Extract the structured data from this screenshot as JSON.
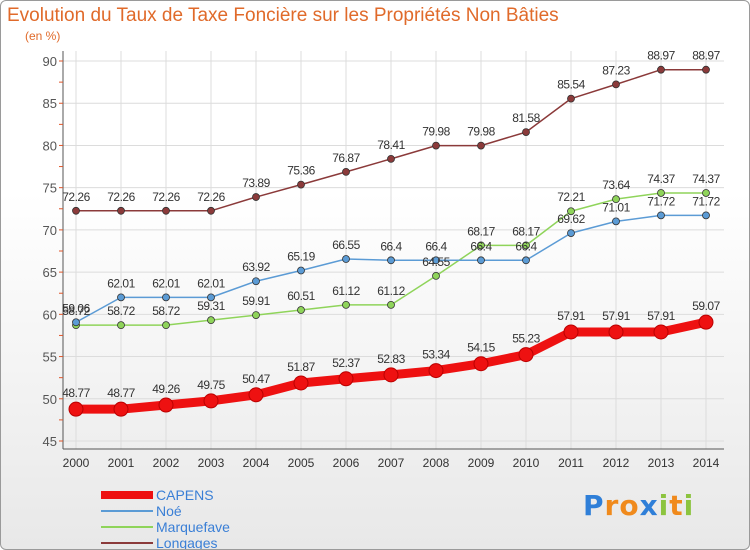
{
  "title": "Evolution du Taux de Taxe Foncière sur les Propriétés Non Bâties",
  "unit_label": "(en %)",
  "logo": {
    "letters": [
      "P",
      "r",
      "o",
      "x",
      "i",
      "t",
      "i"
    ],
    "colors": [
      "#2f7fd8",
      "#f08a1c",
      "#f08a1c",
      "#2f7fd8",
      "#8cc43f",
      "#f08a1c",
      "#8cc43f"
    ]
  },
  "chart_data": {
    "type": "line",
    "title": "Evolution du Taux de Taxe Foncière sur les Propriétés Non Bâties",
    "ylabel": "(en %)",
    "xlabel": "",
    "x": [
      "2000",
      "2001",
      "2002",
      "2003",
      "2004",
      "2005",
      "2006",
      "2007",
      "2008",
      "2009",
      "2010",
      "2011",
      "2012",
      "2013",
      "2014"
    ],
    "ylim": [
      45,
      90
    ],
    "yticks": [
      "45",
      "50",
      "55",
      "60",
      "65",
      "70",
      "75",
      "80",
      "85",
      "90"
    ],
    "grid": true,
    "legend_position": "bottom-left",
    "series": [
      {
        "name": "CAPENS",
        "color": "#ee1111",
        "values": [
          48.77,
          48.77,
          49.26,
          49.75,
          50.47,
          51.87,
          52.37,
          52.83,
          53.34,
          54.15,
          55.23,
          57.91,
          57.91,
          57.91,
          59.07
        ],
        "labels": [
          "48.77",
          "48.77",
          "49.26",
          "49.75",
          "50.47",
          "51.87",
          "52.37",
          "52.83",
          "53.34",
          "54.15",
          "55.23",
          "57.91",
          "57.91",
          "57.91",
          "59.07"
        ]
      },
      {
        "name": "Noé",
        "color": "#5b9bd5",
        "values": [
          59.06,
          62.01,
          62.01,
          62.01,
          63.92,
          65.19,
          66.55,
          66.4,
          66.4,
          66.4,
          66.4,
          69.62,
          71.01,
          71.72,
          71.72
        ],
        "labels": [
          "59.06",
          "62.01",
          "62.01",
          "62.01",
          "63.92",
          "65.19",
          "66.55",
          "66.4",
          "66.4",
          "66.4",
          "66.4",
          "69.62",
          "71.01",
          "71.72",
          "71.72"
        ]
      },
      {
        "name": "Marquefave",
        "color": "#8fd45a",
        "values": [
          58.72,
          58.72,
          58.72,
          59.31,
          59.91,
          60.51,
          61.12,
          61.12,
          64.55,
          68.17,
          68.17,
          72.21,
          73.64,
          74.37,
          74.37
        ],
        "labels": [
          "58.72",
          "58.72",
          "58.72",
          "59.31",
          "59.91",
          "60.51",
          "61.12",
          "61.12",
          "64.55",
          "68.17",
          "68.17",
          "72.21",
          "73.64",
          "74.37",
          "74.37"
        ]
      },
      {
        "name": "Longages",
        "color": "#8b3a3a",
        "values": [
          72.26,
          72.26,
          72.26,
          72.26,
          73.89,
          75.36,
          76.87,
          78.41,
          79.98,
          79.98,
          81.58,
          85.54,
          87.23,
          88.97,
          88.97
        ],
        "labels": [
          "72.26",
          "72.26",
          "72.26",
          "72.26",
          "73.89",
          "75.36",
          "76.87",
          "78.41",
          "79.98",
          "79.98",
          "81.58",
          "85.54",
          "87.23",
          "88.97",
          "88.97"
        ]
      }
    ]
  }
}
